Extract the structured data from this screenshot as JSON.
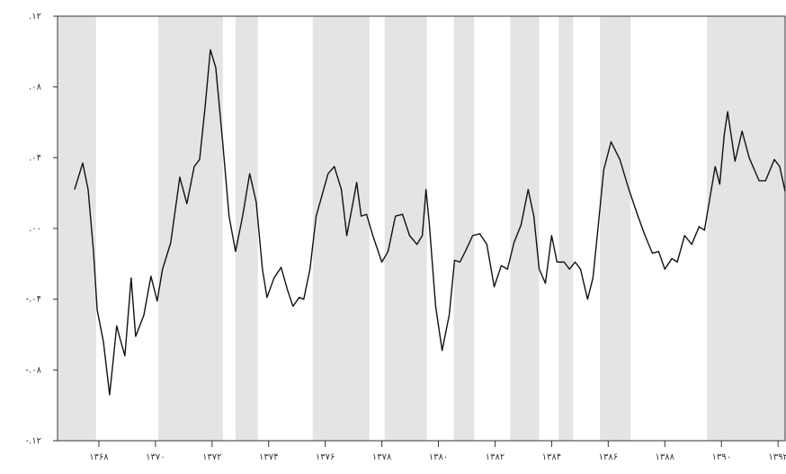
{
  "chart_data": {
    "type": "line",
    "xlim": [
      1366.54,
      1392.25
    ],
    "ylim": [
      -0.12,
      0.12
    ],
    "yticks": [
      {
        "value": 0.12,
        "label": ".۱۲"
      },
      {
        "value": 0.08,
        "label": ".۰۸"
      },
      {
        "value": 0.04,
        "label": ".۰۴"
      },
      {
        "value": 0,
        "label": ".۰۰"
      },
      {
        "value": -0.04,
        "label": "-.۰۴"
      },
      {
        "value": -0.08,
        "label": "-.۰۸"
      },
      {
        "value": -0.12,
        "label": "-.۱۲"
      }
    ],
    "xticks": [
      {
        "value": 1368,
        "label": "۱۳۶۸"
      },
      {
        "value": 1370,
        "label": "۱۳۷۰"
      },
      {
        "value": 1372,
        "label": "۱۳۷۲"
      },
      {
        "value": 1374,
        "label": "۱۳۷۴"
      },
      {
        "value": 1376,
        "label": "۱۳۷۶"
      },
      {
        "value": 1378,
        "label": "۱۳۷۸"
      },
      {
        "value": 1380,
        "label": "۱۳۸۰"
      },
      {
        "value": 1382,
        "label": "۱۳۸۲"
      },
      {
        "value": 1384,
        "label": "۱۳۸۴"
      },
      {
        "value": 1386,
        "label": "۱۳۸۶"
      },
      {
        "value": 1388,
        "label": "۱۳۸۸"
      },
      {
        "value": 1390,
        "label": "۱۳۹۰"
      },
      {
        "value": 1392,
        "label": "۱۳۹۲"
      }
    ],
    "shaded": [
      [
        1366.54,
        1367.9
      ],
      [
        1370.1,
        1372.38
      ],
      [
        1372.83,
        1373.62
      ],
      [
        1375.56,
        1377.56
      ],
      [
        1378.1,
        1379.59
      ],
      [
        1380.54,
        1381.27
      ],
      [
        1382.54,
        1383.56
      ],
      [
        1384.25,
        1384.76
      ],
      [
        1385.71,
        1386.79
      ],
      [
        1389.49,
        1392.25
      ]
    ],
    "shade_color": "#e4e4e4",
    "color": "#111111",
    "x": [
      1367.14,
      1367.43,
      1367.62,
      1367.81,
      1367.94,
      1368.16,
      1368.38,
      1368.51,
      1368.63,
      1368.76,
      1368.92,
      1369.14,
      1369.3,
      1369.59,
      1369.84,
      1370.06,
      1370.25,
      1370.54,
      1370.86,
      1371.11,
      1371.37,
      1371.56,
      1371.75,
      1371.94,
      1372.13,
      1372.38,
      1372.6,
      1372.83,
      1373.08,
      1373.33,
      1373.56,
      1373.78,
      1373.94,
      1374.19,
      1374.44,
      1374.67,
      1374.86,
      1375.08,
      1375.24,
      1375.46,
      1375.68,
      1376.1,
      1376.32,
      1376.57,
      1376.76,
      1376.95,
      1377.11,
      1377.27,
      1377.46,
      1377.68,
      1378.0,
      1378.22,
      1378.48,
      1378.73,
      1378.98,
      1379.24,
      1379.43,
      1379.56,
      1379.68,
      1379.9,
      1380.13,
      1380.38,
      1380.57,
      1380.76,
      1380.95,
      1381.21,
      1381.46,
      1381.71,
      1381.97,
      1382.22,
      1382.44,
      1382.67,
      1382.92,
      1383.17,
      1383.37,
      1383.56,
      1383.78,
      1384.0,
      1384.19,
      1384.44,
      1384.63,
      1384.83,
      1385.02,
      1385.27,
      1385.46,
      1385.65,
      1385.84,
      1386.1,
      1386.41,
      1386.73,
      1387.05,
      1387.3,
      1387.56,
      1387.78,
      1388.0,
      1388.25,
      1388.44,
      1388.7,
      1388.95,
      1389.21,
      1389.4,
      1389.59,
      1389.78,
      1389.94,
      1390.1,
      1390.22,
      1390.48,
      1390.73,
      1390.98,
      1391.33,
      1391.56,
      1391.87,
      1392.06,
      1392.25
    ],
    "values": [
      0.022,
      0.037,
      0.022,
      -0.013,
      -0.046,
      -0.064,
      -0.094,
      -0.074,
      -0.055,
      -0.063,
      -0.072,
      -0.028,
      -0.061,
      -0.049,
      -0.027,
      -0.041,
      -0.023,
      -0.008,
      0.029,
      0.014,
      0.035,
      0.039,
      0.068,
      0.101,
      0.091,
      0.048,
      0.007,
      -0.013,
      0.007,
      0.031,
      0.015,
      -0.023,
      -0.039,
      -0.028,
      -0.022,
      -0.035,
      -0.044,
      -0.039,
      -0.04,
      -0.023,
      0.007,
      0.031,
      0.035,
      0.022,
      -0.004,
      0.012,
      0.026,
      0.007,
      0.008,
      -0.004,
      -0.019,
      -0.013,
      0.007,
      0.008,
      -0.004,
      -0.009,
      -0.004,
      0.022,
      0.002,
      -0.044,
      -0.069,
      -0.049,
      -0.018,
      -0.019,
      -0.013,
      -0.004,
      -0.003,
      -0.009,
      -0.033,
      -0.021,
      -0.023,
      -0.008,
      0.002,
      0.022,
      0.007,
      -0.023,
      -0.031,
      -0.004,
      -0.019,
      -0.019,
      -0.023,
      -0.019,
      -0.023,
      -0.04,
      -0.028,
      0.002,
      0.033,
      0.049,
      0.039,
      0.022,
      0.007,
      -0.004,
      -0.014,
      -0.013,
      -0.023,
      -0.017,
      -0.019,
      -0.004,
      -0.009,
      0.001,
      -0.001,
      0.017,
      0.035,
      0.025,
      0.053,
      0.066,
      0.038,
      0.055,
      0.04,
      0.027,
      0.027,
      0.039,
      0.035,
      0.021
    ]
  }
}
